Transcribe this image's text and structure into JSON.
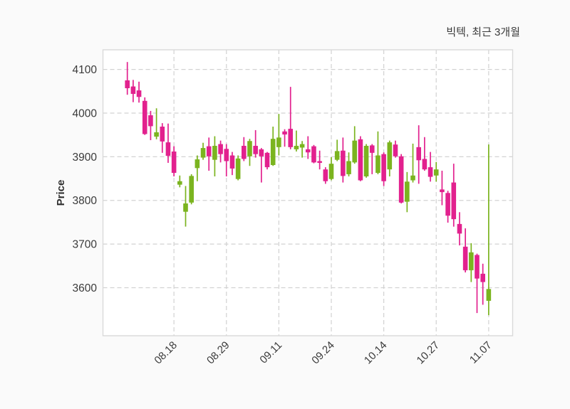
{
  "title": "빅텍, 최근 3개월",
  "ylabel": "Price",
  "colors": {
    "up": "#7bb41f",
    "down": "#e2218e",
    "grid": "#d2d2d2",
    "border": "#d9d9d9",
    "plot_bg": "#ffffff",
    "fig_bg": "#fafafa",
    "text": "#3a3a3a",
    "label_text": "#2e2e2e"
  },
  "chart_data": {
    "type": "candlestick",
    "title": "빅텍, 최근 3개월",
    "ylabel": "Price",
    "legend": null,
    "grid": true,
    "ylim": [
      3490,
      4145
    ],
    "y_ticks": [
      3600,
      3700,
      3800,
      3900,
      4000,
      4100
    ],
    "x_tick_labels": [
      "08.18",
      "08.29",
      "09.11",
      "09.24",
      "10.14",
      "10.27",
      "11.07"
    ],
    "x_tick_indices": [
      8,
      17,
      26,
      35,
      44,
      53,
      62
    ],
    "ohlc_order": [
      "open",
      "high",
      "low",
      "close"
    ],
    "candles": [
      [
        4075,
        4117,
        4042,
        4057
      ],
      [
        4061,
        4076,
        4025,
        4044
      ],
      [
        4052,
        4072,
        4024,
        4037
      ],
      [
        4028,
        4036,
        3950,
        3952
      ],
      [
        3995,
        4005,
        3938,
        3970
      ],
      [
        3946,
        4011,
        3940,
        3956
      ],
      [
        3969,
        3977,
        3909,
        3935
      ],
      [
        3933,
        3976,
        3886,
        3902
      ],
      [
        3912,
        3924,
        3855,
        3863
      ],
      [
        3836,
        3857,
        3830,
        3844
      ],
      [
        3774,
        3833,
        3740,
        3793
      ],
      [
        3795,
        3860,
        3791,
        3856
      ],
      [
        3874,
        3903,
        3844,
        3894
      ],
      [
        3898,
        3932,
        3893,
        3920
      ],
      [
        3924,
        3944,
        3868,
        3901
      ],
      [
        3893,
        3947,
        3855,
        3925
      ],
      [
        3929,
        3937,
        3887,
        3906
      ],
      [
        3918,
        3929,
        3855,
        3890
      ],
      [
        3903,
        3911,
        3858,
        3873
      ],
      [
        3849,
        3903,
        3846,
        3896
      ],
      [
        3925,
        3945,
        3890,
        3895
      ],
      [
        3901,
        3941,
        3879,
        3936
      ],
      [
        3925,
        3961,
        3898,
        3906
      ],
      [
        3917,
        3920,
        3841,
        3901
      ],
      [
        3909,
        3911,
        3871,
        3876
      ],
      [
        3881,
        3969,
        3879,
        3941
      ],
      [
        3922,
        3998,
        3903,
        3944
      ],
      [
        3958,
        3963,
        3923,
        3951
      ],
      [
        3964,
        4060,
        3917,
        3922
      ],
      [
        3917,
        3960,
        3912,
        3925
      ],
      [
        3921,
        3936,
        3898,
        3929
      ],
      [
        3917,
        3947,
        3895,
        3910
      ],
      [
        3924,
        3927,
        3885,
        3887
      ],
      [
        3890,
        3914,
        3871,
        3886
      ],
      [
        3871,
        3876,
        3838,
        3844
      ],
      [
        3849,
        3899,
        3846,
        3884
      ],
      [
        3893,
        3939,
        3890,
        3913
      ],
      [
        3914,
        3944,
        3841,
        3856
      ],
      [
        3860,
        3910,
        3855,
        3890
      ],
      [
        3887,
        3970,
        3884,
        3937
      ],
      [
        3940,
        3947,
        3844,
        3846
      ],
      [
        3855,
        3929,
        3852,
        3925
      ],
      [
        3926,
        3929,
        3860,
        3909
      ],
      [
        3863,
        3958,
        3860,
        3903
      ],
      [
        3906,
        3910,
        3833,
        3844
      ],
      [
        3871,
        3937,
        3855,
        3933
      ],
      [
        3928,
        3937,
        3898,
        3901
      ],
      [
        3901,
        3906,
        3793,
        3795
      ],
      [
        3797,
        3865,
        3773,
        3843
      ],
      [
        3846,
        3930,
        3841,
        3857
      ],
      [
        3922,
        3972,
        3838,
        3892
      ],
      [
        3895,
        3945,
        3868,
        3871
      ],
      [
        3876,
        3911,
        3843,
        3854
      ],
      [
        3857,
        3888,
        3843,
        3871
      ],
      [
        3825,
        3868,
        3789,
        3819
      ],
      [
        3817,
        3822,
        3749,
        3765
      ],
      [
        3841,
        3884,
        3740,
        3757
      ],
      [
        3746,
        3773,
        3697,
        3724
      ],
      [
        3694,
        3736,
        3635,
        3640
      ],
      [
        3640,
        3702,
        3613,
        3681
      ],
      [
        3675,
        3678,
        3542,
        3621
      ],
      [
        3632,
        3655,
        3561,
        3613
      ],
      [
        3570,
        3928,
        3537,
        3597
      ]
    ]
  }
}
